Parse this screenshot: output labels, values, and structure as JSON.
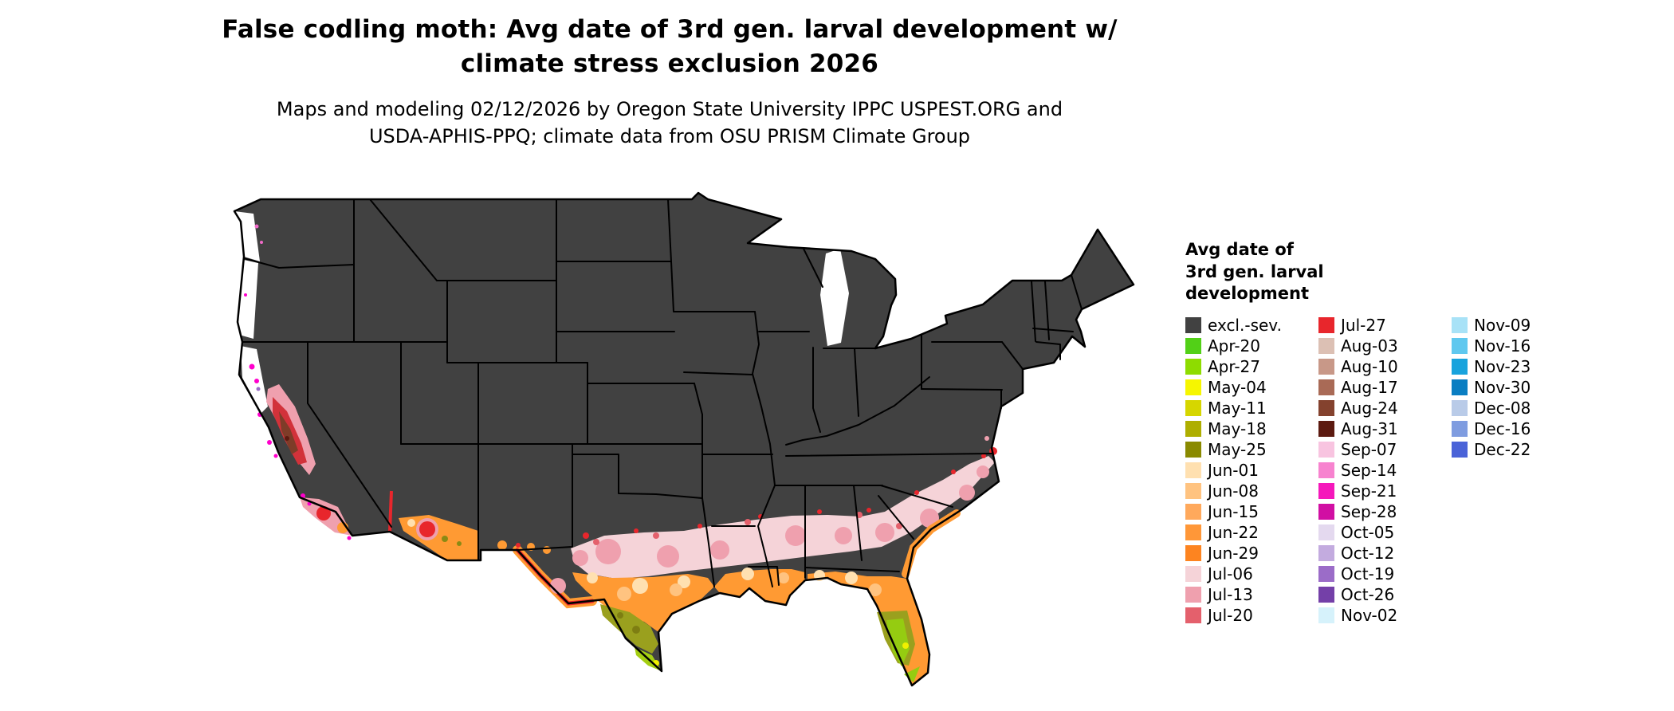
{
  "title": {
    "line1": "False codling moth: Avg date of 3rd gen. larval development w/",
    "line2": "climate stress exclusion 2026"
  },
  "subtitle": {
    "line1": "Maps and modeling 02/12/2026 by Oregon State University IPPC USPEST.ORG and",
    "line2": "USDA-APHIS-PPQ; climate data from OSU PRISM Climate Group"
  },
  "legend": {
    "title_lines": [
      "Avg date of",
      "3rd gen. larval",
      "development"
    ],
    "columns": [
      [
        {
          "label": "excl.-sev.",
          "color": "#414141"
        },
        {
          "label": "Apr-20",
          "color": "#52d017"
        },
        {
          "label": "Apr-27",
          "color": "#8edc00"
        },
        {
          "label": "May-04",
          "color": "#f6f600"
        },
        {
          "label": "May-11",
          "color": "#d6d600"
        },
        {
          "label": "May-18",
          "color": "#aeae00"
        },
        {
          "label": "May-25",
          "color": "#8a8a00"
        },
        {
          "label": "Jun-01",
          "color": "#ffe0b0"
        },
        {
          "label": "Jun-08",
          "color": "#ffc380"
        },
        {
          "label": "Jun-15",
          "color": "#ffa95c"
        },
        {
          "label": "Jun-22",
          "color": "#ff9738"
        },
        {
          "label": "Jun-29",
          "color": "#fd8420"
        },
        {
          "label": "Jul-06",
          "color": "#f5d3d8"
        },
        {
          "label": "Jul-13",
          "color": "#efa0ae"
        },
        {
          "label": "Jul-20",
          "color": "#e4606c"
        }
      ],
      [
        {
          "label": "Jul-27",
          "color": "#e8262c"
        },
        {
          "label": "Aug-03",
          "color": "#dcc0b4"
        },
        {
          "label": "Aug-10",
          "color": "#c89888"
        },
        {
          "label": "Aug-17",
          "color": "#a96a56"
        },
        {
          "label": "Aug-24",
          "color": "#84422e"
        },
        {
          "label": "Aug-31",
          "color": "#5c1a10"
        },
        {
          "label": "Sep-07",
          "color": "#f8c4e0"
        },
        {
          "label": "Sep-14",
          "color": "#f783cf"
        },
        {
          "label": "Sep-21",
          "color": "#f518bb"
        },
        {
          "label": "Sep-28",
          "color": "#d10fa3"
        },
        {
          "label": "Oct-05",
          "color": "#e4d9ef"
        },
        {
          "label": "Oct-12",
          "color": "#c3abdf"
        },
        {
          "label": "Oct-19",
          "color": "#9b6cc8"
        },
        {
          "label": "Oct-26",
          "color": "#7440a8"
        },
        {
          "label": "Nov-02",
          "color": "#d6f2fb"
        }
      ],
      [
        {
          "label": "Nov-09",
          "color": "#a8e2f7"
        },
        {
          "label": "Nov-16",
          "color": "#5fc8ef"
        },
        {
          "label": "Nov-23",
          "color": "#18a3dd"
        },
        {
          "label": "Nov-30",
          "color": "#0a7ec2"
        },
        {
          "label": "Dec-08",
          "color": "#b9cbe8"
        },
        {
          "label": "Dec-16",
          "color": "#7f9ce0"
        },
        {
          "label": "Dec-22",
          "color": "#4a63d8"
        }
      ]
    ]
  },
  "map": {
    "land_color": "#414141",
    "state_border_color": "#000000",
    "background_color": "#ffffff"
  }
}
